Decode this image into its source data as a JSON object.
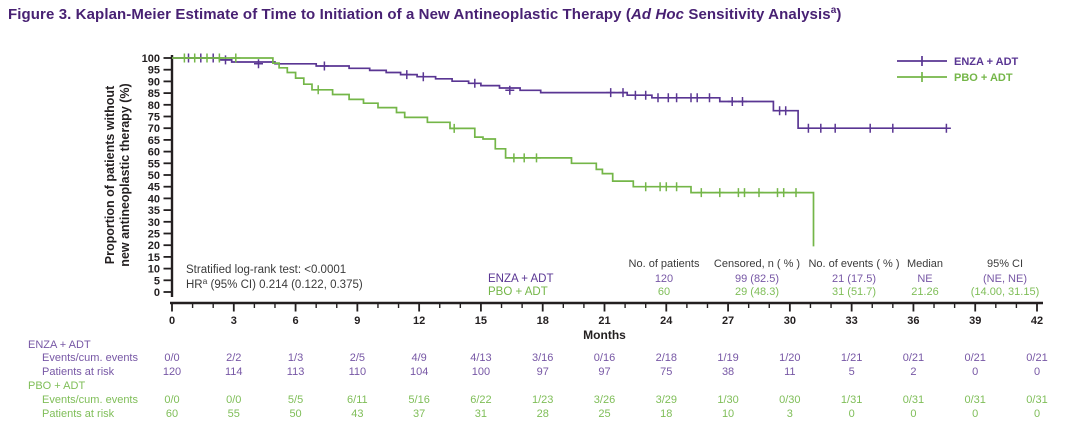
{
  "figure": {
    "title": {
      "prefix": "Figure 3. Kaplan-Meier Estimate of Time to Initiation of a New Antineoplastic Therapy (",
      "italic": "Ad Hoc",
      "mid": " Sensitivity Analysis",
      "sup": "a",
      "close": ")"
    },
    "title_color": "#482173"
  },
  "chart_data": {
    "type": "line",
    "subtype": "kaplan-meier-step",
    "title": "Kaplan-Meier Estimate of Time to Initiation of a New Antineoplastic Therapy",
    "xlabel": "Months",
    "ylabel_lines": [
      "Proportion of patients without",
      "new antineoplastic therapy (%)"
    ],
    "xlim": [
      0,
      42
    ],
    "xtick_step": 3,
    "xminor_step": 1,
    "ylim": [
      0,
      100
    ],
    "ytick_step": 5,
    "grid": false,
    "legend_position": "top-right",
    "axis_color": "#231F20",
    "text_dark": "#3B3B3B",
    "series": [
      {
        "name": "ENZA + ADT",
        "color": "#5A3693",
        "text_color": "#7757A5",
        "end_month": 37.6,
        "steps": [
          [
            0,
            100
          ],
          [
            2.3,
            99.2
          ],
          [
            2.9,
            98.3
          ],
          [
            5.0,
            97.5
          ],
          [
            7.0,
            96.6
          ],
          [
            8.6,
            95.6
          ],
          [
            9.6,
            94.7
          ],
          [
            10.4,
            93.8
          ],
          [
            11.1,
            92.9
          ],
          [
            11.9,
            92.0
          ],
          [
            12.8,
            91.1
          ],
          [
            13.6,
            90.1
          ],
          [
            14.4,
            89.2
          ],
          [
            15.0,
            88.2
          ],
          [
            15.9,
            87.2
          ],
          [
            16.9,
            86.2
          ],
          [
            17.9,
            85.2
          ],
          [
            22.1,
            84.1
          ],
          [
            23.3,
            83.0
          ],
          [
            26.6,
            81.4
          ],
          [
            29.2,
            77.5
          ],
          [
            30.4,
            70.0
          ]
        ],
        "censors": [
          [
            0.8,
            100
          ],
          [
            1.4,
            100
          ],
          [
            2.0,
            100
          ],
          [
            2.6,
            99.2
          ],
          [
            4.2,
            97.5
          ],
          [
            7.4,
            96.6
          ],
          [
            11.4,
            92.9
          ],
          [
            12.2,
            92.0
          ],
          [
            14.7,
            89.2
          ],
          [
            16.4,
            86.2
          ],
          [
            21.3,
            85.2
          ],
          [
            21.9,
            85.2
          ],
          [
            22.5,
            84.1
          ],
          [
            23.0,
            84.1
          ],
          [
            23.6,
            83.0
          ],
          [
            24.1,
            83.0
          ],
          [
            24.5,
            83.0
          ],
          [
            25.2,
            83.0
          ],
          [
            25.5,
            83.0
          ],
          [
            26.1,
            83.0
          ],
          [
            27.2,
            81.4
          ],
          [
            27.7,
            81.4
          ],
          [
            29.5,
            77.5
          ],
          [
            29.8,
            77.5
          ],
          [
            30.9,
            70.0
          ],
          [
            31.5,
            70.0
          ],
          [
            32.2,
            70.0
          ],
          [
            33.9,
            70.0
          ],
          [
            35.0,
            70.0
          ],
          [
            37.6,
            70.0
          ]
        ]
      },
      {
        "name": "PBO + ADT",
        "color": "#74B648",
        "text_color": "#7FBE58",
        "end_month": 31.15,
        "steps": [
          [
            0,
            100
          ],
          [
            4.9,
            97.8
          ],
          [
            5.2,
            95.8
          ],
          [
            5.6,
            93.8
          ],
          [
            6.0,
            91.4
          ],
          [
            6.4,
            88.8
          ],
          [
            6.8,
            86.4
          ],
          [
            7.8,
            84.4
          ],
          [
            8.6,
            82.3
          ],
          [
            9.3,
            80.7
          ],
          [
            10.0,
            78.8
          ],
          [
            10.9,
            76.7
          ],
          [
            11.3,
            74.6
          ],
          [
            12.4,
            72.5
          ],
          [
            13.5,
            69.9
          ],
          [
            14.7,
            66.2
          ],
          [
            15.1,
            65.4
          ],
          [
            15.7,
            61.2
          ],
          [
            16.2,
            57.3
          ],
          [
            19.4,
            55.0
          ],
          [
            20.6,
            52.4
          ],
          [
            20.9,
            50.6
          ],
          [
            21.4,
            47.4
          ],
          [
            22.4,
            45.0
          ],
          [
            25.2,
            42.5
          ],
          [
            31.15,
            19.5
          ]
        ],
        "censors": [
          [
            0.6,
            100
          ],
          [
            1.1,
            100
          ],
          [
            1.7,
            100
          ],
          [
            2.3,
            100
          ],
          [
            3.1,
            100
          ],
          [
            7.1,
            86.4
          ],
          [
            13.7,
            69.9
          ],
          [
            16.6,
            57.3
          ],
          [
            17.1,
            57.3
          ],
          [
            17.7,
            57.3
          ],
          [
            23.0,
            45.0
          ],
          [
            23.7,
            45.0
          ],
          [
            24.0,
            45.0
          ],
          [
            24.5,
            45.0
          ],
          [
            25.7,
            42.5
          ],
          [
            26.6,
            42.5
          ],
          [
            27.5,
            42.5
          ],
          [
            27.8,
            42.5
          ],
          [
            28.5,
            42.5
          ],
          [
            29.4,
            42.5
          ],
          [
            29.7,
            42.5
          ],
          [
            30.3,
            42.5
          ]
        ]
      }
    ],
    "stats": {
      "line1": "Stratified log-rank test: <0.0001",
      "hr_prefix": "HR",
      "hr_sup": "a",
      "hr_rest": " (95% CI) 0.214 (0.122, 0.375)"
    },
    "summary_table": {
      "headers": [
        "No. of patients",
        "Censored, n ( % )",
        "No. of events ( % )",
        "Median",
        "95% CI"
      ],
      "rows": [
        {
          "group": "ENZA + ADT",
          "values": [
            "120",
            "99 (82.5)",
            "21 (17.5)",
            "NE",
            "(NE, NE)"
          ]
        },
        {
          "group": "PBO + ADT",
          "values": [
            "60",
            "29 (48.3)",
            "31 (51.7)",
            "21.26",
            "(14.00, 31.15)"
          ]
        }
      ]
    }
  },
  "risk_table": {
    "groups": [
      {
        "name": "ENZA + ADT",
        "color": "#7757A5",
        "rows": [
          {
            "label": "Events/cum. events",
            "values": [
              "0/0",
              "2/2",
              "1/3",
              "2/5",
              "4/9",
              "4/13",
              "3/16",
              "0/16",
              "2/18",
              "1/19",
              "1/20",
              "1/21",
              "0/21",
              "0/21",
              "0/21"
            ]
          },
          {
            "label": "Patients at risk",
            "values": [
              "120",
              "114",
              "113",
              "110",
              "104",
              "100",
              "97",
              "97",
              "75",
              "38",
              "11",
              "5",
              "2",
              "0",
              "0"
            ]
          }
        ]
      },
      {
        "name": "PBO + ADT",
        "color": "#7FBE58",
        "rows": [
          {
            "label": "Events/cum. events",
            "values": [
              "0/0",
              "0/0",
              "5/5",
              "6/11",
              "5/16",
              "6/22",
              "1/23",
              "3/26",
              "3/29",
              "1/30",
              "0/30",
              "1/31",
              "0/31",
              "0/31",
              "0/31"
            ]
          },
          {
            "label": "Patients at risk",
            "values": [
              "60",
              "55",
              "50",
              "43",
              "37",
              "31",
              "28",
              "25",
              "18",
              "10",
              "3",
              "0",
              "0",
              "0",
              "0"
            ]
          }
        ]
      }
    ]
  }
}
